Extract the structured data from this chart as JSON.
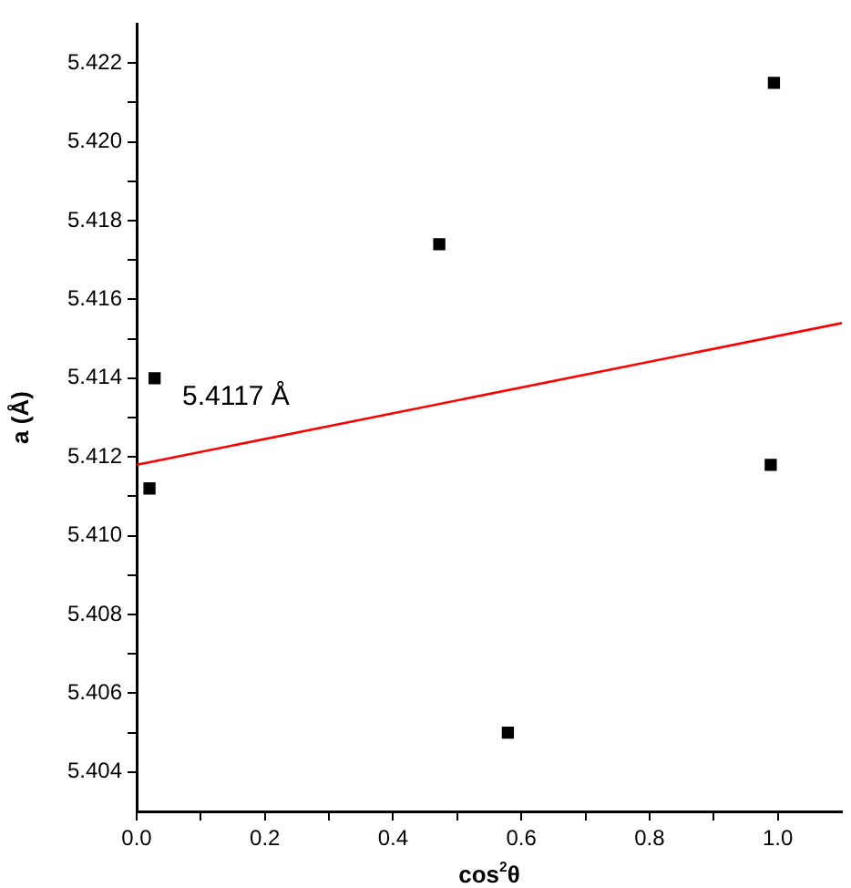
{
  "chart_data": {
    "type": "scatter",
    "xlabel": "cos$^{2}$θ",
    "ylabel": "a (Å)",
    "xlim": [
      0,
      1.1
    ],
    "ylim": [
      5.403,
      5.423
    ],
    "xticks": [
      {
        "value": 0,
        "label": "0.0"
      },
      {
        "value": 0.1,
        "label": null
      },
      0.2,
      {
        "value": 0.3,
        "label": null
      },
      0.4,
      {
        "value": 0.5,
        "label": null
      },
      0.6,
      {
        "value": 0.7,
        "label": null
      },
      0.8,
      {
        "value": 0.9,
        "label": null
      },
      {
        "value": 1,
        "label": "1.0"
      }
    ],
    "yticks": [
      5.404,
      {
        "value": 5.405,
        "label": null
      },
      5.406,
      {
        "value": 5.407,
        "label": null
      },
      5.408,
      {
        "value": 5.409,
        "label": null
      },
      {
        "value": 5.41,
        "label": "5.410"
      },
      {
        "value": 5.411,
        "label": null
      },
      5.412,
      {
        "value": 5.413,
        "label": null
      },
      5.414,
      {
        "value": 5.415,
        "label": null
      },
      5.416,
      {
        "value": 5.417,
        "label": null
      },
      5.418,
      {
        "value": 5.419,
        "label": null
      },
      {
        "value": 5.42,
        "label": "5.420"
      },
      {
        "value": 5.421,
        "label": null
      },
      5.422
    ],
    "grid": false,
    "legend": false,
    "annotations": [
      "5.4117 Å"
    ],
    "series": [
      {
        "type": "scatter",
        "x": [
          0.02,
          0.028,
          0.472,
          0.579,
          0.989,
          0.994
        ],
        "values": [
          5.4112,
          5.414,
          5.4174,
          5.405,
          5.4118,
          5.4215
        ],
        "color": "#000000",
        "marker": "square"
      },
      {
        "type": "line",
        "x": [
          0,
          1.1
        ],
        "values": [
          5.4118,
          5.4154
        ],
        "color": "#ff0000",
        "marker": "none",
        "line_style": "solid"
      }
    ]
  }
}
